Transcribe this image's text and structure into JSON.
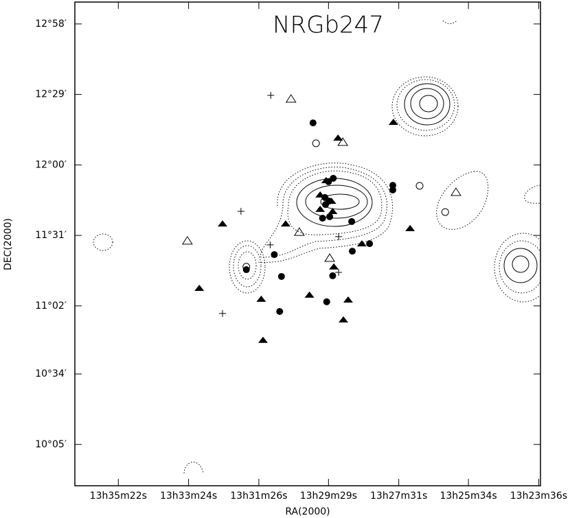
{
  "chart_data": {
    "type": "scatter",
    "title": "NRGb247",
    "xlabel": "RA(2000)",
    "ylabel": "DEC(2000)",
    "xlim": [
      48995,
      48213
    ],
    "ylim": [
      588,
      787
    ],
    "xticks": [
      {
        "value": 48922,
        "label": "13h35m22s"
      },
      {
        "value": 48804,
        "label": "13h33m24s"
      },
      {
        "value": 48686,
        "label": "13h31m26s"
      },
      {
        "value": 48569,
        "label": "13h29m29s"
      },
      {
        "value": 48451,
        "label": "13h27m31s"
      },
      {
        "value": 48334,
        "label": "13h25m34s"
      },
      {
        "value": 48216,
        "label": "13h23m36s"
      }
    ],
    "yticks": [
      {
        "value": 778,
        "label": "12°58′"
      },
      {
        "value": 749,
        "label": "12°29′"
      },
      {
        "value": 720,
        "label": "12°00′"
      },
      {
        "value": 691,
        "label": "11°31′"
      },
      {
        "value": 662,
        "label": "11°02′"
      },
      {
        "value": 634,
        "label": "10°34′"
      },
      {
        "value": 605,
        "label": "10°05′"
      }
    ],
    "series": [
      {
        "marker": "filled-circle",
        "color": "#000000",
        "x": [
          48595,
          48561,
          48569,
          48575,
          48568,
          48574,
          48579,
          48567,
          48530,
          48461,
          48461,
          48500,
          48529,
          48660,
          48707,
          48648,
          48562,
          48572,
          48651
        ],
        "values": [
          737.3,
          714.5,
          713.1,
          706.6,
          705.1,
          703.7,
          698.1,
          698.7,
          696.7,
          711.6,
          709.7,
          687.6,
          684.5,
          683.1,
          676.9,
          674.1,
          674.4,
          663.7,
          659.7
        ]
      },
      {
        "marker": "filled-triangle",
        "color": "#000000",
        "x": [
          48460,
          48553,
          48573,
          48583,
          48564,
          48583,
          48562,
          48747,
          48641,
          48432,
          48513,
          48786,
          48682,
          48601,
          48560,
          48536,
          48544,
          48679
        ],
        "values": [
          737.6,
          731.1,
          713.6,
          707.7,
          705.1,
          701.8,
          700.9,
          695.8,
          695.8,
          693.9,
          687.6,
          669.3,
          664.8,
          666.5,
          678.1,
          664.5,
          656.3,
          647.9
        ]
      },
      {
        "marker": "open-triangle",
        "color": "#000000",
        "x": [
          48632,
          48545,
          48618,
          48806,
          48567,
          48355
        ],
        "values": [
          747.2,
          729.4,
          692.4,
          688.8,
          681.7,
          708.8
        ]
      },
      {
        "marker": "open-circle",
        "color": "#000000",
        "x": [
          48590,
          48416,
          48373,
          48707
        ],
        "values": [
          728.9,
          711.4,
          700.6,
          678.1
        ]
      },
      {
        "marker": "cross",
        "color": "#000000",
        "x": [
          48666,
          48716,
          48667,
          48552,
          48552,
          48747
        ],
        "values": [
          748.6,
          700.9,
          687.1,
          690.5,
          675.8,
          658.9
        ]
      }
    ]
  }
}
